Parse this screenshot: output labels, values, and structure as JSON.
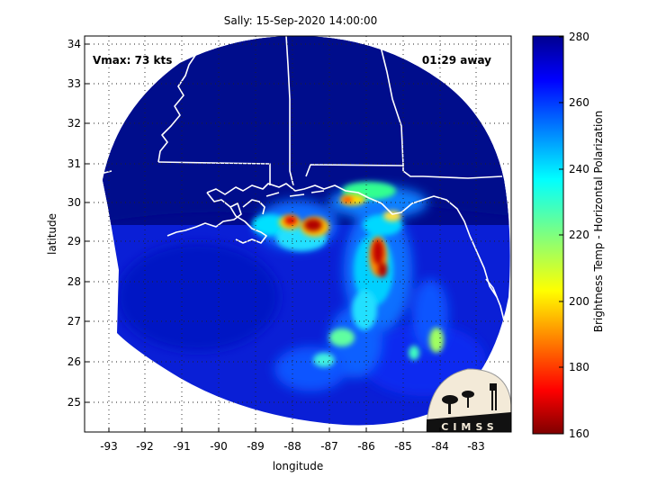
{
  "title": "Sally: 15-Sep-2020 14:00:00",
  "annotations": {
    "vmax": "Vmax: 73 kts",
    "time_away": "01:29 away"
  },
  "logo_text": "CIMSS",
  "xlabel": "longitude",
  "ylabel": "latitude",
  "colorbar": {
    "label": "Brightness Temp - Horizontal Polarization",
    "min": 160,
    "max": 280,
    "ticks": [
      "160",
      "180",
      "200",
      "220",
      "240",
      "260",
      "280"
    ]
  },
  "x_ticks": [
    "-93",
    "-92",
    "-91",
    "-90",
    "-89",
    "-88",
    "-87",
    "-86",
    "-85",
    "-84",
    "-83"
  ],
  "y_ticks": [
    "25",
    "26",
    "27",
    "28",
    "29",
    "30",
    "31",
    "32",
    "33",
    "34"
  ],
  "chart_data": {
    "type": "heatmap",
    "title": "Sally: 15-Sep-2020 14:00:00",
    "xlabel": "longitude",
    "ylabel": "latitude",
    "xlim": [
      -93.7,
      -82.3
    ],
    "ylim": [
      24.2,
      34.4
    ],
    "grid": true,
    "color_range": [
      160,
      280
    ],
    "colors": {
      "cold": "#7f0000",
      "warm": "#00008f",
      "coast": "#ffffff"
    }
  }
}
